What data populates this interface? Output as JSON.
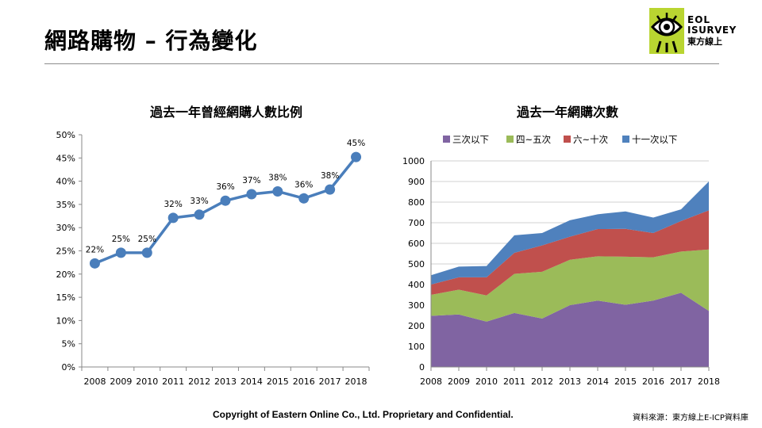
{
  "page": {
    "title": "網路購物 – 行為變化",
    "logo": {
      "line1": "EOL",
      "line2": "ISURVEY",
      "line3": "東方線上"
    },
    "footer": "Copyright  of Eastern  Online  Co., Ltd. Proprietary and Confidential.",
    "source": "資料來源：東方線上E-ICP資料庫"
  },
  "chart_data": [
    {
      "type": "line",
      "title": "過去一年曾經網購人數比例",
      "x": [
        "2008",
        "2009",
        "2010",
        "2011",
        "2012",
        "2013",
        "2014",
        "2015",
        "2016",
        "2017",
        "2018"
      ],
      "series": [
        {
          "values": [
            22.3,
            24.6,
            24.6,
            32.1,
            32.8,
            35.8,
            37.2,
            37.8,
            36.3,
            38.2,
            45.2
          ]
        }
      ],
      "data_labels": [
        "22%",
        "25%",
        "25%",
        "32%",
        "33%",
        "36%",
        "37%",
        "38%",
        "36%",
        "38%",
        "45%"
      ],
      "ylim": [
        0,
        50
      ],
      "yticks": [
        "0%",
        "5%",
        "10%",
        "15%",
        "20%",
        "25%",
        "30%",
        "35%",
        "40%",
        "45%",
        "50%"
      ],
      "grid": false,
      "color": "#4a7ebb"
    },
    {
      "type": "area",
      "stacked": true,
      "title": "過去一年網購次數",
      "x": [
        "2008",
        "2009",
        "2010",
        "2011",
        "2012",
        "2013",
        "2014",
        "2015",
        "2016",
        "2017",
        "2018"
      ],
      "series": [
        {
          "name": "三次以下",
          "color": "#8064a2",
          "values": [
            248,
            255,
            220,
            262,
            235,
            300,
            322,
            302,
            322,
            360,
            272
          ]
        },
        {
          "name": "四~五次",
          "color": "#9bbb59",
          "values": [
            102,
            120,
            127,
            190,
            227,
            220,
            215,
            233,
            210,
            200,
            298
          ]
        },
        {
          "name": "六~十次",
          "color": "#c0504d",
          "values": [
            50,
            60,
            88,
            102,
            128,
            112,
            132,
            135,
            118,
            148,
            190
          ]
        },
        {
          "name": "十一次以下",
          "color": "#4f81bd",
          "values": [
            45,
            52,
            55,
            85,
            60,
            80,
            72,
            85,
            75,
            57,
            140
          ]
        }
      ],
      "ylim": [
        0,
        1000
      ],
      "yticks": [
        "0",
        "100",
        "200",
        "300",
        "400",
        "500",
        "600",
        "700",
        "800",
        "900",
        "1000"
      ],
      "grid": true,
      "legend": "top"
    }
  ]
}
